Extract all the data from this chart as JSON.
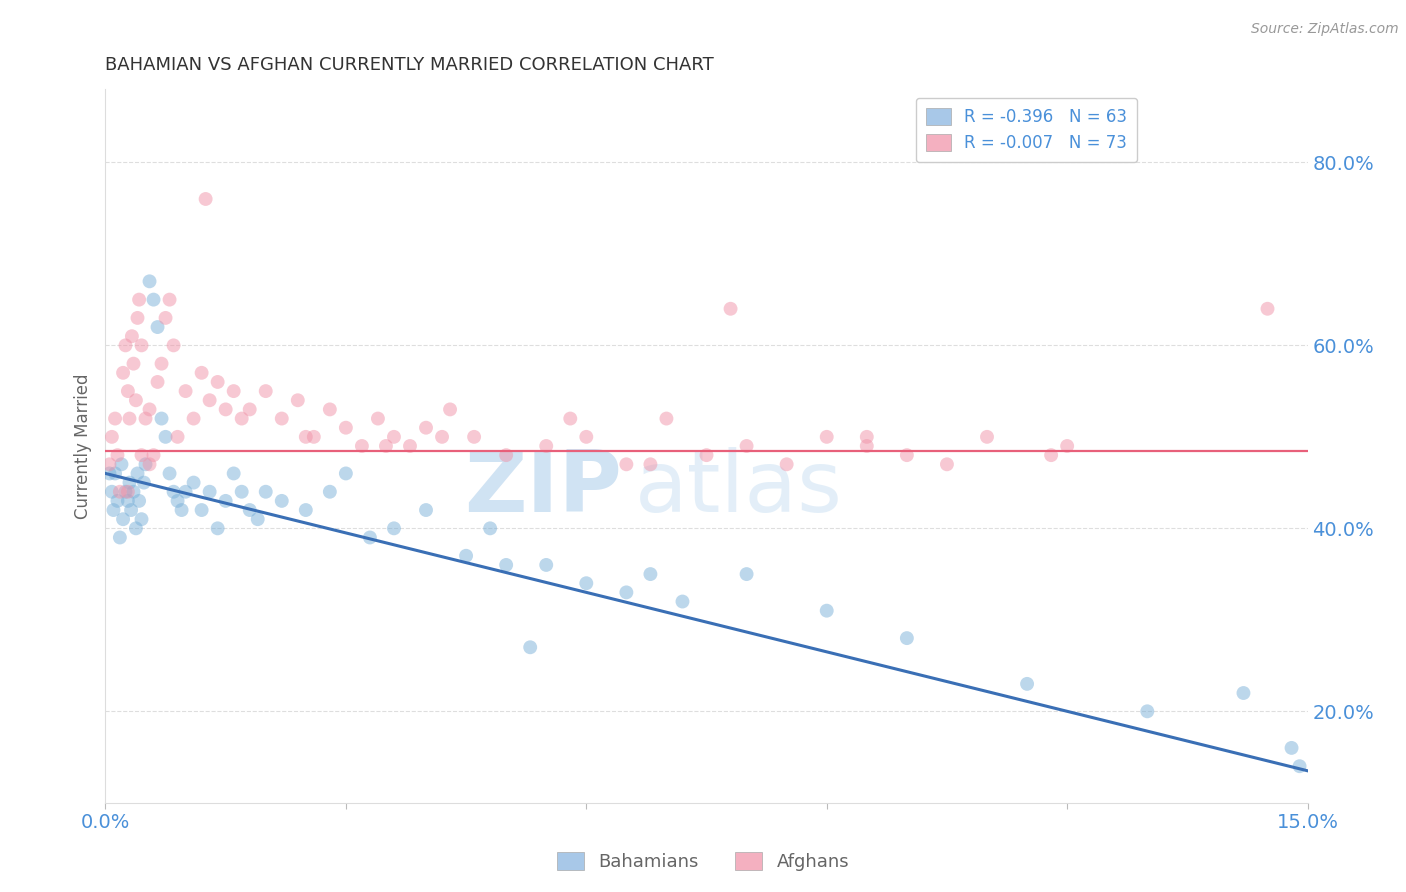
{
  "title": "BAHAMIAN VS AFGHAN CURRENTLY MARRIED CORRELATION CHART",
  "source": "Source: ZipAtlas.com",
  "ylabel": "Currently Married",
  "xlim": [
    0.0,
    15.0
  ],
  "ylim": [
    10.0,
    88.0
  ],
  "yticks": [
    20.0,
    40.0,
    60.0,
    80.0
  ],
  "blue_scatter_color": "#7ab0d8",
  "pink_scatter_color": "#f093a8",
  "blue_line_color": "#3a6fb5",
  "pink_line_color": "#e8607a",
  "blue_line_x": [
    0.0,
    15.0
  ],
  "blue_line_y": [
    46.0,
    13.5
  ],
  "pink_line_y": 48.5,
  "watermark_zip": "ZIP",
  "watermark_atlas": "atlas",
  "background_color": "#ffffff",
  "grid_color": "#dedede",
  "title_color": "#333333",
  "axis_label_color": "#666666",
  "tick_label_color": "#4a90d9",
  "scatter_size": 100,
  "scatter_alpha": 0.5,
  "legend1_color": "#a8c8e8",
  "legend2_color": "#f4b0c0",
  "legend1_text": "R = -0.396   N = 63",
  "legend2_text": "R = -0.007   N = 73",
  "bahamian_x": [
    0.05,
    0.08,
    0.1,
    0.12,
    0.15,
    0.18,
    0.2,
    0.22,
    0.25,
    0.28,
    0.3,
    0.32,
    0.35,
    0.38,
    0.4,
    0.42,
    0.45,
    0.48,
    0.5,
    0.55,
    0.6,
    0.65,
    0.7,
    0.75,
    0.8,
    0.85,
    0.9,
    0.95,
    1.0,
    1.1,
    1.2,
    1.3,
    1.4,
    1.5,
    1.6,
    1.7,
    1.8,
    1.9,
    2.0,
    2.2,
    2.5,
    2.8,
    3.0,
    3.3,
    3.6,
    4.0,
    4.5,
    5.0,
    5.5,
    6.0,
    6.5,
    7.2,
    8.0,
    9.0,
    10.0,
    11.5,
    13.0,
    14.2,
    14.8,
    14.9,
    4.8,
    5.3,
    6.8
  ],
  "bahamian_y": [
    46.0,
    44.0,
    42.0,
    46.0,
    43.0,
    39.0,
    47.0,
    41.0,
    44.0,
    43.0,
    45.0,
    42.0,
    44.0,
    40.0,
    46.0,
    43.0,
    41.0,
    45.0,
    47.0,
    67.0,
    65.0,
    62.0,
    52.0,
    50.0,
    46.0,
    44.0,
    43.0,
    42.0,
    44.0,
    45.0,
    42.0,
    44.0,
    40.0,
    43.0,
    46.0,
    44.0,
    42.0,
    41.0,
    44.0,
    43.0,
    42.0,
    44.0,
    46.0,
    39.0,
    40.0,
    42.0,
    37.0,
    36.0,
    36.0,
    34.0,
    33.0,
    32.0,
    35.0,
    31.0,
    28.0,
    23.0,
    20.0,
    22.0,
    16.0,
    14.0,
    40.0,
    27.0,
    35.0
  ],
  "afghan_x": [
    0.05,
    0.08,
    0.12,
    0.15,
    0.18,
    0.22,
    0.25,
    0.28,
    0.3,
    0.33,
    0.35,
    0.38,
    0.4,
    0.42,
    0.45,
    0.5,
    0.55,
    0.6,
    0.65,
    0.7,
    0.75,
    0.8,
    0.85,
    0.9,
    1.0,
    1.1,
    1.2,
    1.3,
    1.4,
    1.5,
    1.6,
    1.7,
    1.8,
    2.0,
    2.2,
    2.4,
    2.6,
    2.8,
    3.0,
    3.2,
    3.4,
    3.6,
    3.8,
    4.0,
    4.3,
    4.6,
    5.0,
    5.5,
    6.0,
    6.5,
    7.0,
    7.5,
    8.0,
    8.5,
    9.0,
    9.5,
    10.0,
    10.5,
    11.0,
    12.0,
    1.25,
    0.45,
    2.5,
    3.5,
    4.2,
    5.8,
    6.8,
    7.8,
    9.5,
    11.8,
    14.5,
    0.28,
    0.55
  ],
  "afghan_y": [
    47.0,
    50.0,
    52.0,
    48.0,
    44.0,
    57.0,
    60.0,
    55.0,
    52.0,
    61.0,
    58.0,
    54.0,
    63.0,
    65.0,
    60.0,
    52.0,
    53.0,
    48.0,
    56.0,
    58.0,
    63.0,
    65.0,
    60.0,
    50.0,
    55.0,
    52.0,
    57.0,
    54.0,
    56.0,
    53.0,
    55.0,
    52.0,
    53.0,
    55.0,
    52.0,
    54.0,
    50.0,
    53.0,
    51.0,
    49.0,
    52.0,
    50.0,
    49.0,
    51.0,
    53.0,
    50.0,
    48.0,
    49.0,
    50.0,
    47.0,
    52.0,
    48.0,
    49.0,
    47.0,
    50.0,
    49.0,
    48.0,
    47.0,
    50.0,
    49.0,
    76.0,
    48.0,
    50.0,
    49.0,
    50.0,
    52.0,
    47.0,
    64.0,
    50.0,
    48.0,
    64.0,
    44.0,
    47.0
  ]
}
